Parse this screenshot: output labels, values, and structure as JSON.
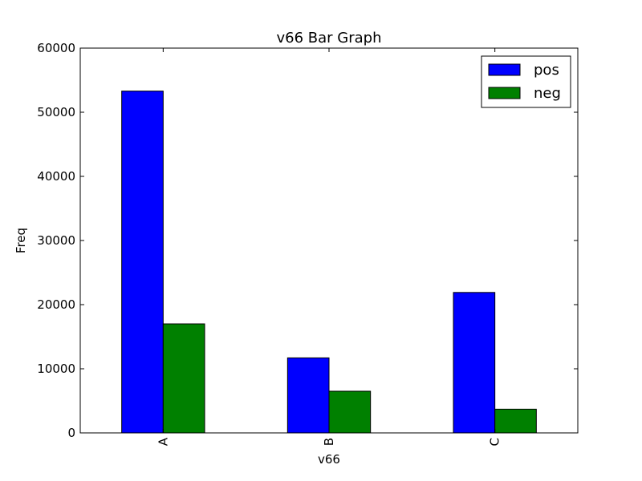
{
  "chart_data": {
    "type": "bar",
    "title": "v66 Bar Graph",
    "xlabel": "v66",
    "ylabel": "Freq",
    "categories": [
      "A",
      "B",
      "C"
    ],
    "series": [
      {
        "name": "pos",
        "color": "#0000ff",
        "values": [
          53300,
          11700,
          21900
        ]
      },
      {
        "name": "neg",
        "color": "#008000",
        "values": [
          17000,
          6500,
          3700
        ]
      }
    ],
    "ylim": [
      0,
      60000
    ],
    "yticks": [
      "0",
      "10000",
      "20000",
      "30000",
      "40000",
      "50000",
      "60000"
    ],
    "grid": false,
    "legend_position": "top-right"
  }
}
